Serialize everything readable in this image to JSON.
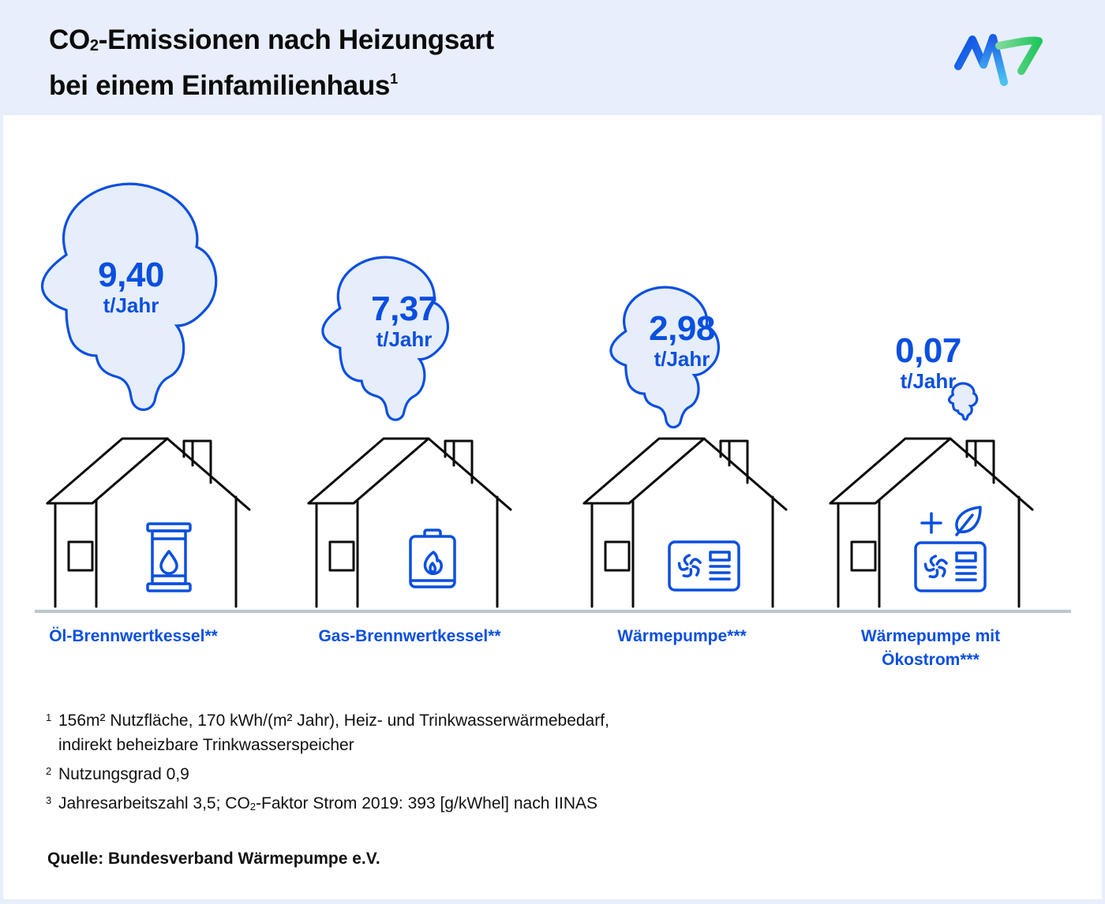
{
  "header": {
    "title_line1_prefix": "CO",
    "title_line1_sub": "2",
    "title_line1_rest": "-Emissionen nach Heizungsart",
    "title_line2": "bei einem Einfamilienhaus",
    "title_line2_sup": "1",
    "logo": "mvv-logo-icon"
  },
  "colors": {
    "accent": "#0a4fe0",
    "cloud_fill": "#e6eefc",
    "header_bg": "#e8eefb",
    "baseline": "#bcc6cf",
    "logo_blue": "#0a4fe0",
    "logo_green": "#22c55e",
    "logo_cyan": "#4cc3f0"
  },
  "chart_data": {
    "type": "bar",
    "title": "CO2-Emissionen nach Heizungsart bei einem Einfamilienhaus",
    "ylabel": "t/Jahr",
    "categories": [
      "Öl-Brennwertkessel**",
      "Gas-Brennwertkessel**",
      "Wärmepumpe***",
      "Wärmepumpe mit Ökostrom***"
    ],
    "values": [
      9.4,
      7.37,
      2.98,
      0.07
    ],
    "value_labels": [
      "9,40",
      "7,37",
      "2,98",
      "0,07"
    ],
    "unit": "t/Jahr",
    "icons": [
      "oil-barrel-icon",
      "gas-boiler-icon",
      "heat-pump-icon",
      "heat-pump-green-power-icon"
    ]
  },
  "footnotes": [
    {
      "mark": "1",
      "text_a": "156m² Nutzfläche, 170 kWh/(m² Jahr), Heiz- und Trinkwasserwärmebedarf,",
      "text_b": "indirekt beheizbare Trinkwasserspeicher"
    },
    {
      "mark": "2",
      "text_a": "Nutzungsgrad 0,9"
    },
    {
      "mark": "3",
      "text_pre": "Jahresarbeitszahl 3,5; CO",
      "text_sub": "2",
      "text_post": "-Faktor Strom 2019: 393 [g/kWhel] nach IINAS"
    }
  ],
  "source": "Quelle: Bundesverband Wärmepumpe e.V."
}
